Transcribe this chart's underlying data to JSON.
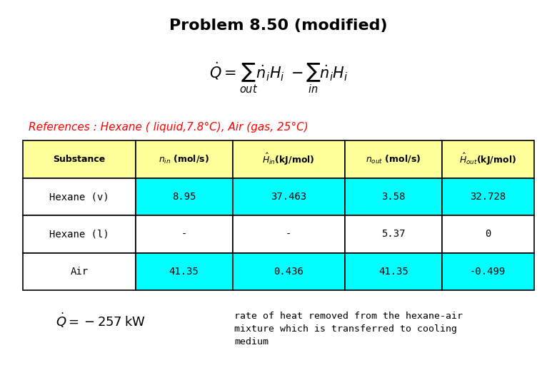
{
  "title": "Problem 8.50 (modified)",
  "references_text": "References : Hexane ( liquid,7.8°C), Air (gas, 25°C)",
  "col_headers": [
    "Substance",
    "ṅᵢₙ(mol/s)",
    "Ĥᵢₙ(kJ/mol)",
    "ṅₒᵤₜ(mol/s)",
    "Ĥₒᵤₜ(kJ/mol)"
  ],
  "col_headers_display": [
    "Substance",
    "n_in (mol/s)",
    "H_in(kJ/mol)",
    "n_out (mol/s)",
    "H_out(kJ/mol)"
  ],
  "rows": [
    [
      "Hexane (v)",
      "8.95",
      "37.463",
      "3.58",
      "32.728"
    ],
    [
      "Hexane (l)",
      "-",
      "-",
      "5.37",
      "0"
    ],
    [
      "Air",
      "41.35",
      "0.436",
      "41.35",
      "-0.499"
    ]
  ],
  "header_bg": "#FFFF99",
  "data_bg_cyan": "#00FFFF",
  "data_bg_white": "#FFFFFF",
  "border_color": "#000000",
  "references_color": "#FF0000",
  "title_color": "#000000",
  "formula_eq1": "$\\dot{Q} = \\sum_{out} \\dot{n}_i H_i - \\sum_{in} \\dot{n}_i H_i$",
  "formula_eq2": "$\\dot{Q} = -257 \\, \\mathrm{kW}$",
  "annotation_text": "rate of heat removed from the hexane-air\nmixture which is transferred to cooling\nmedium",
  "bg_color": "#FFFFFF"
}
